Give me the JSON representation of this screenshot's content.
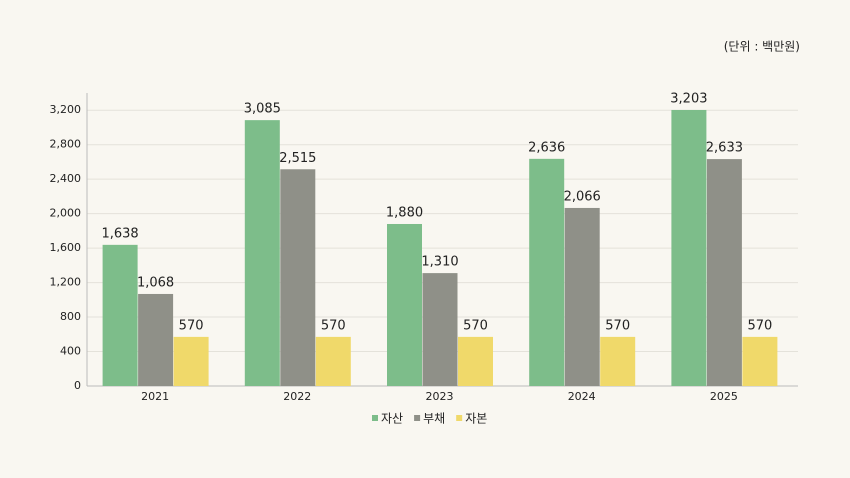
{
  "chart_data": {
    "type": "bar",
    "unit_note": "(단위 : 백만원)",
    "categories": [
      "2021",
      "2022",
      "2023",
      "2024",
      "2025"
    ],
    "series": [
      {
        "name": "자산",
        "color": "#7dbd8a",
        "values": [
          1638,
          3085,
          1880,
          2636,
          3203
        ],
        "value_labels": [
          "1,638",
          "3,085",
          "1,880",
          "2,636",
          "3,203"
        ]
      },
      {
        "name": "부채",
        "color": "#8f9088",
        "values": [
          1068,
          2515,
          1310,
          2066,
          2633
        ],
        "value_labels": [
          "1,068",
          "2,515",
          "1,310",
          "2,066",
          "2,633"
        ]
      },
      {
        "name": "자본",
        "color": "#f0d96a",
        "values": [
          570,
          570,
          570,
          570,
          570
        ]
      }
    ],
    "ylim": [
      0,
      3400
    ],
    "yticks": [
      0,
      400,
      800,
      {
        "value": 1200,
        "label": "1,200"
      },
      {
        "value": 1600,
        "label": "1,600"
      },
      {
        "value": 2000,
        "label": "2,000"
      },
      {
        "value": 2400,
        "label": "2,400"
      },
      {
        "value": 2800,
        "label": "2,800"
      },
      {
        "value": 3200,
        "label": "3,200"
      }
    ],
    "grid": true,
    "legend": "bottom"
  }
}
